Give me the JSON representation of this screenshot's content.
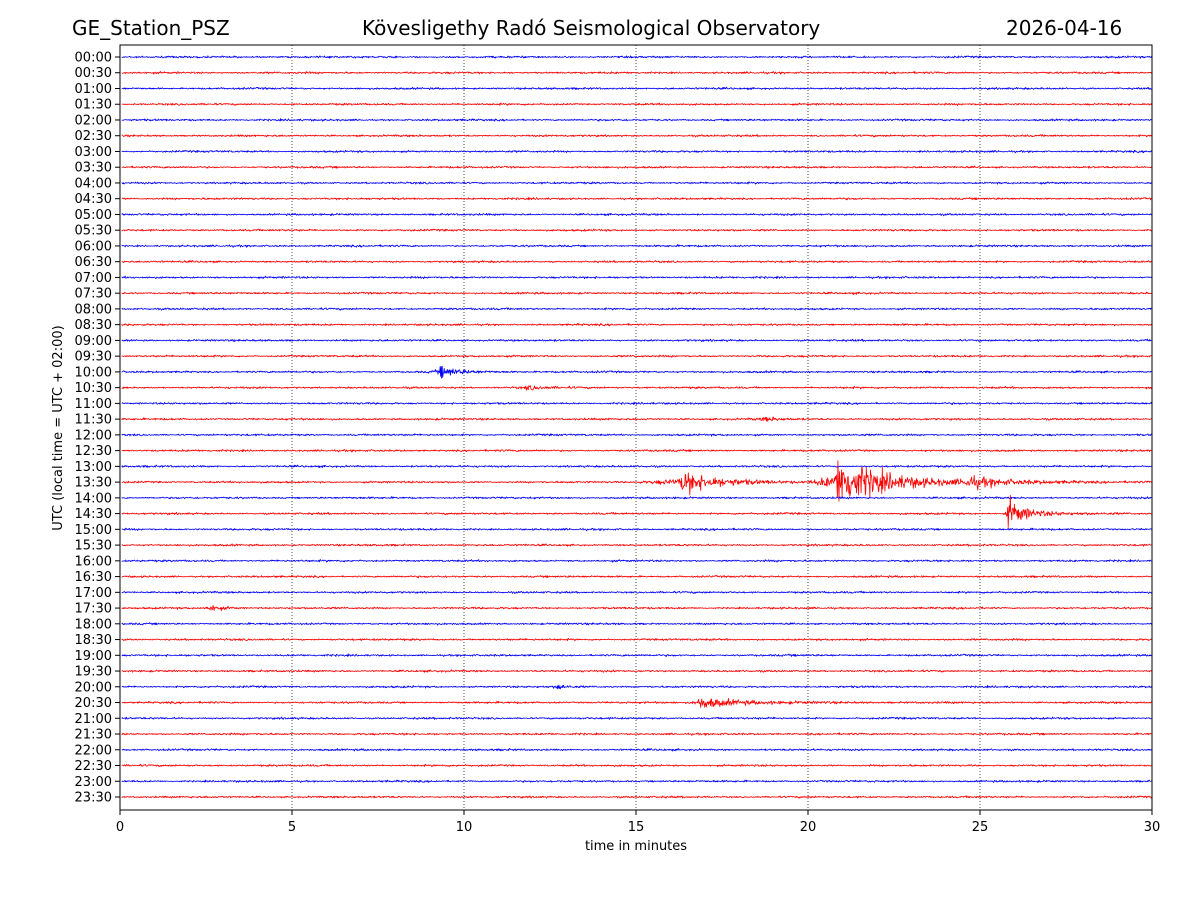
{
  "header": {
    "station": "GE_Station_PSZ",
    "title": "Kövesligethy Radó Seismological Observatory",
    "date": "2026-04-16"
  },
  "chart_data": {
    "type": "line",
    "title": "Kövesligethy Radó Seismological Observatory",
    "xlabel": "time in minutes",
    "ylabel": "UTC (local time = UTC + 02:00)",
    "xlim": [
      0,
      30
    ],
    "xticks": [
      0,
      5,
      10,
      15,
      20,
      25,
      30
    ],
    "grid": "vertical dotted at x ticks",
    "trace_labels": [
      "00:00",
      "00:30",
      "01:00",
      "01:30",
      "02:00",
      "02:30",
      "03:00",
      "03:30",
      "04:00",
      "04:30",
      "05:00",
      "05:30",
      "06:00",
      "06:30",
      "07:00",
      "07:30",
      "08:00",
      "08:30",
      "09:00",
      "09:30",
      "10:00",
      "10:30",
      "11:00",
      "11:30",
      "12:00",
      "12:30",
      "13:00",
      "13:30",
      "14:00",
      "14:30",
      "15:00",
      "15:30",
      "16:00",
      "16:30",
      "17:00",
      "17:30",
      "18:00",
      "18:30",
      "19:00",
      "19:30",
      "20:00",
      "20:30",
      "21:00",
      "21:30",
      "22:00",
      "22:30",
      "23:00",
      "23:30"
    ],
    "trace_colors": [
      "#0000ff",
      "#ff0000"
    ],
    "noise_level": 0.07,
    "events": [
      {
        "trace": "10:00",
        "onset_min": 8.9,
        "peak_min": 9.3,
        "amplitude": 0.35,
        "decay_min": 0.4
      },
      {
        "trace": "10:30",
        "onset_min": 11.3,
        "peak_min": 11.8,
        "amplitude": 0.12,
        "decay_min": 0.4
      },
      {
        "trace": "11:30",
        "onset_min": 18.2,
        "peak_min": 18.7,
        "amplitude": 0.15,
        "decay_min": 0.3
      },
      {
        "trace": "13:30",
        "onset_min": 14.8,
        "peak_min": 16.3,
        "amplitude": 0.7,
        "decay_min": 0.8
      },
      {
        "trace": "13:30",
        "onset_min": 20.0,
        "peak_min": 20.8,
        "amplitude": 1.6,
        "decay_min": 1.0
      },
      {
        "trace": "13:30",
        "onset_min": 24.2,
        "peak_min": 24.6,
        "amplitude": 0.3,
        "decay_min": 0.6
      },
      {
        "trace": "14:30",
        "onset_min": 25.7,
        "peak_min": 25.8,
        "amplitude": 0.9,
        "decay_min": 0.4
      },
      {
        "trace": "17:30",
        "onset_min": 2.4,
        "peak_min": 2.6,
        "amplitude": 0.25,
        "decay_min": 0.2
      },
      {
        "trace": "20:00",
        "onset_min": 12.5,
        "peak_min": 12.7,
        "amplitude": 0.22,
        "decay_min": 0.15
      },
      {
        "trace": "20:30",
        "onset_min": 16.5,
        "peak_min": 16.8,
        "amplitude": 0.35,
        "decay_min": 0.9
      }
    ]
  }
}
